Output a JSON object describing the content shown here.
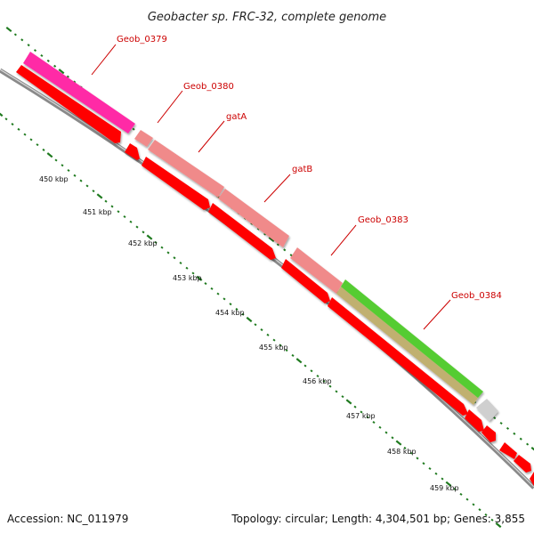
{
  "title": "Geobacter sp. FRC-32, complete genome",
  "footer": {
    "accession": "Accession: NC_011979",
    "summary": "Topology: circular; Length: 4,304,501 bp; Genes: 3,855"
  },
  "colors": {
    "backbone": "#8a8a8a",
    "tick": "#1f7a1f",
    "cds": "#ff0000",
    "gene_pink": "#ff2aa6",
    "gene_salmon": "#f08a8a",
    "gene_green": "#55cc33",
    "gene_khaki": "#c0b070",
    "gene_gray": "#cfcfcf",
    "label": "#cc0000"
  },
  "tick_labels": [
    "450 kbp",
    "451 kbp",
    "452 kbp",
    "453 kbp",
    "454 kbp",
    "455 kbp",
    "456 kbp",
    "457 kbp",
    "458 kbp",
    "459 kbp"
  ],
  "gene_labels": [
    "Geob_0379",
    "Geob_0380",
    "gatA",
    "gatB",
    "Geob_0383",
    "Geob_0384"
  ]
}
